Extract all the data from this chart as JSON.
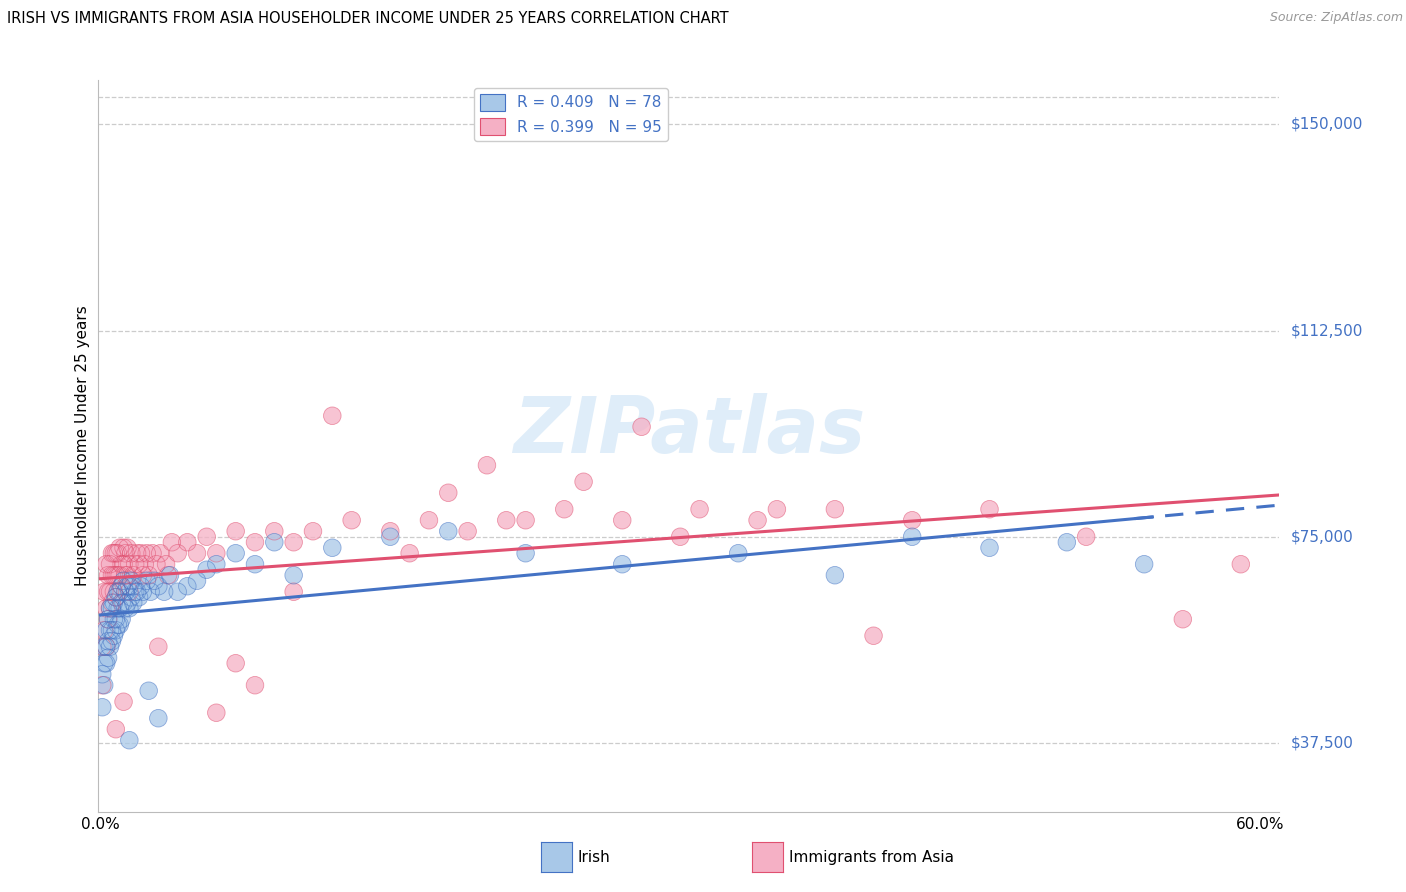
{
  "title": "IRISH VS IMMIGRANTS FROM ASIA HOUSEHOLDER INCOME UNDER 25 YEARS CORRELATION CHART",
  "source": "Source: ZipAtlas.com",
  "ylabel": "Householder Income Under 25 years",
  "y_ticks": [
    37500,
    75000,
    112500,
    150000
  ],
  "y_tick_labels": [
    "$37,500",
    "$75,000",
    "$112,500",
    "$150,000"
  ],
  "y_min": 25000,
  "y_max": 158000,
  "x_min": -0.001,
  "x_max": 0.61,
  "irish_R": "0.409",
  "irish_N": "78",
  "asia_R": "0.399",
  "asia_N": "95",
  "irish_color": "#a8c8e8",
  "asia_color": "#f5b0c5",
  "irish_line_color": "#4472c4",
  "asia_line_color": "#e05070",
  "watermark": "ZIPatlas",
  "irish_x": [
    0.001,
    0.001,
    0.002,
    0.002,
    0.002,
    0.003,
    0.003,
    0.003,
    0.004,
    0.004,
    0.004,
    0.005,
    0.005,
    0.005,
    0.006,
    0.006,
    0.006,
    0.007,
    0.007,
    0.007,
    0.008,
    0.008,
    0.008,
    0.009,
    0.009,
    0.009,
    0.01,
    0.01,
    0.01,
    0.011,
    0.011,
    0.011,
    0.012,
    0.012,
    0.013,
    0.013,
    0.014,
    0.014,
    0.015,
    0.015,
    0.016,
    0.016,
    0.017,
    0.017,
    0.018,
    0.019,
    0.02,
    0.021,
    0.022,
    0.024,
    0.026,
    0.028,
    0.03,
    0.033,
    0.036,
    0.04,
    0.045,
    0.05,
    0.055,
    0.06,
    0.07,
    0.08,
    0.09,
    0.1,
    0.12,
    0.15,
    0.18,
    0.22,
    0.27,
    0.33,
    0.38,
    0.42,
    0.46,
    0.5,
    0.54,
    0.03,
    0.025,
    0.015
  ],
  "irish_y": [
    50000,
    44000,
    52000,
    55000,
    48000,
    55000,
    58000,
    52000,
    56000,
    60000,
    53000,
    58000,
    62000,
    55000,
    58000,
    62000,
    56000,
    60000,
    63000,
    57000,
    60000,
    64000,
    58000,
    62000,
    65000,
    59000,
    62000,
    65000,
    59000,
    63000,
    66000,
    60000,
    63000,
    67000,
    62000,
    65000,
    63000,
    66000,
    62000,
    66000,
    64000,
    67000,
    63000,
    66000,
    65000,
    65000,
    64000,
    66000,
    65000,
    67000,
    65000,
    67000,
    66000,
    65000,
    68000,
    65000,
    66000,
    67000,
    69000,
    70000,
    72000,
    70000,
    74000,
    68000,
    73000,
    75000,
    76000,
    72000,
    70000,
    72000,
    68000,
    75000,
    73000,
    74000,
    70000,
    42000,
    47000,
    38000
  ],
  "asia_x": [
    0.001,
    0.001,
    0.002,
    0.002,
    0.003,
    0.003,
    0.003,
    0.004,
    0.004,
    0.004,
    0.005,
    0.005,
    0.005,
    0.006,
    0.006,
    0.006,
    0.007,
    0.007,
    0.007,
    0.008,
    0.008,
    0.008,
    0.009,
    0.009,
    0.009,
    0.01,
    0.01,
    0.011,
    0.011,
    0.012,
    0.012,
    0.013,
    0.013,
    0.014,
    0.014,
    0.015,
    0.016,
    0.017,
    0.018,
    0.019,
    0.02,
    0.021,
    0.022,
    0.023,
    0.024,
    0.025,
    0.027,
    0.029,
    0.031,
    0.034,
    0.037,
    0.04,
    0.045,
    0.05,
    0.055,
    0.06,
    0.07,
    0.08,
    0.09,
    0.1,
    0.11,
    0.13,
    0.15,
    0.17,
    0.19,
    0.21,
    0.24,
    0.27,
    0.31,
    0.34,
    0.38,
    0.42,
    0.46,
    0.51,
    0.56,
    0.59,
    0.12,
    0.2,
    0.28,
    0.18,
    0.25,
    0.35,
    0.08,
    0.06,
    0.035,
    0.015,
    0.012,
    0.008,
    0.03,
    0.07,
    0.1,
    0.16,
    0.22,
    0.3,
    0.4
  ],
  "asia_y": [
    55000,
    48000,
    58000,
    65000,
    62000,
    70000,
    55000,
    65000,
    68000,
    60000,
    65000,
    70000,
    62000,
    68000,
    72000,
    63000,
    68000,
    72000,
    65000,
    68000,
    72000,
    64000,
    68000,
    72000,
    65000,
    68000,
    73000,
    70000,
    66000,
    70000,
    73000,
    68000,
    72000,
    68000,
    73000,
    70000,
    72000,
    68000,
    70000,
    72000,
    70000,
    72000,
    68000,
    70000,
    72000,
    68000,
    72000,
    70000,
    72000,
    70000,
    74000,
    72000,
    74000,
    72000,
    75000,
    72000,
    76000,
    74000,
    76000,
    74000,
    76000,
    78000,
    76000,
    78000,
    76000,
    78000,
    80000,
    78000,
    80000,
    78000,
    80000,
    78000,
    80000,
    75000,
    60000,
    70000,
    97000,
    88000,
    95000,
    83000,
    85000,
    80000,
    48000,
    43000,
    68000,
    65000,
    45000,
    40000,
    55000,
    52000,
    65000,
    72000,
    78000,
    75000,
    57000
  ]
}
